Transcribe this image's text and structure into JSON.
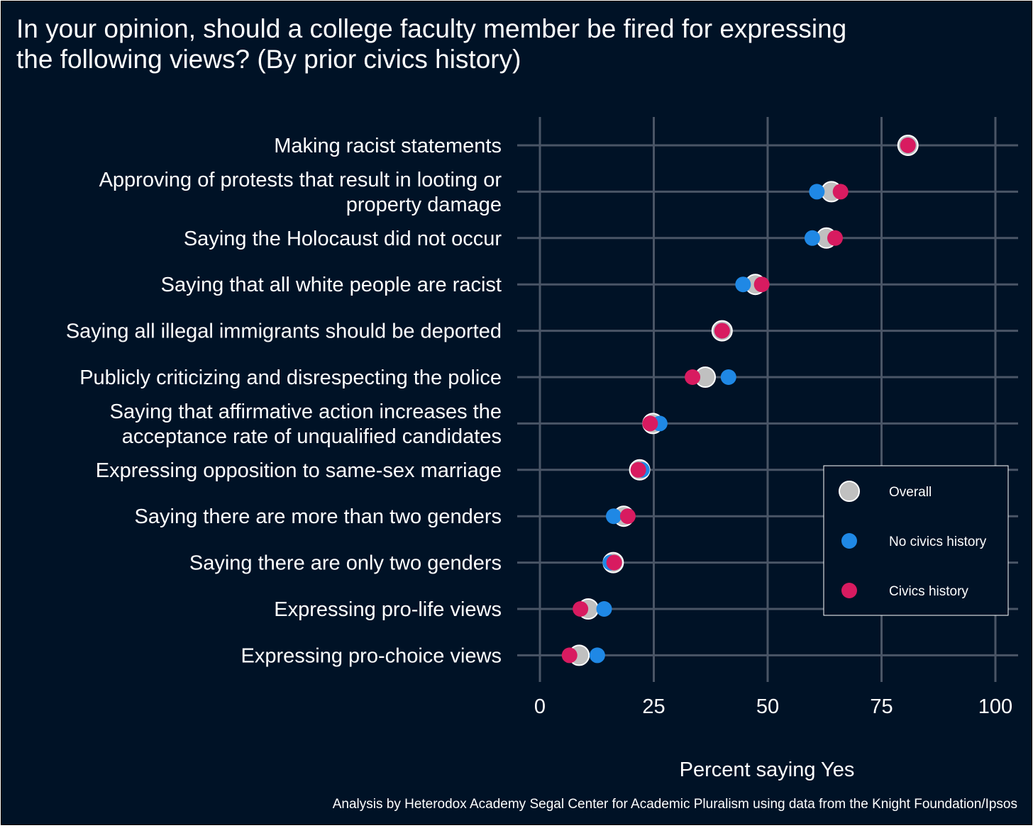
{
  "title_line1": "In your opinion, should a college faculty member be fired for expressing",
  "title_line2": "the following views? (By prior civics history)",
  "caption": "Analysis by Heterodox Academy Segal Center for Academic Pluralism using data from the Knight Foundation/Ipsos",
  "colors": {
    "background": "#001226",
    "grid": "#4a5566",
    "text": "#ffffff",
    "overall": "#c0c0c0",
    "no_civics": "#1f88e5",
    "civics": "#d81b60"
  },
  "chart_data": {
    "type": "scatter",
    "xlabel": "Percent saying Yes",
    "ylabel": "",
    "xlim": [
      0,
      100
    ],
    "xticks": [
      0,
      25,
      50,
      75,
      100
    ],
    "grid": true,
    "legend_position": "right",
    "categories": [
      [
        "Making racist statements"
      ],
      [
        "Approving of protests that result in looting or",
        "property damage"
      ],
      [
        "Saying the Holocaust did not occur"
      ],
      [
        "Saying that all white people are racist"
      ],
      [
        "Saying all illegal immigrants should be deported"
      ],
      [
        "Publicly criticizing and disrespecting the police"
      ],
      [
        "Saying that affirmative action increases the",
        "acceptance rate of unqualified candidates"
      ],
      [
        "Expressing opposition to same-sex marriage"
      ],
      [
        "Saying there are more than two genders"
      ],
      [
        "Saying there are only two genders"
      ],
      [
        "Expressing pro-life views"
      ],
      [
        "Expressing pro-choice views"
      ]
    ],
    "series": [
      {
        "name": "Overall",
        "values": [
          80.8,
          64.0,
          62.9,
          47.3,
          40.0,
          36.3,
          24.8,
          21.9,
          18.4,
          16.1,
          10.6,
          8.6
        ]
      },
      {
        "name": "No civics history",
        "values": [
          80.8,
          60.8,
          59.8,
          44.6,
          40.0,
          41.4,
          26.3,
          22.4,
          16.2,
          15.5,
          14.1,
          12.6
        ]
      },
      {
        "name": "Civics history",
        "values": [
          80.8,
          66.0,
          64.8,
          48.7,
          40.0,
          33.5,
          24.2,
          21.6,
          19.3,
          16.3,
          8.9,
          6.5
        ]
      }
    ]
  }
}
